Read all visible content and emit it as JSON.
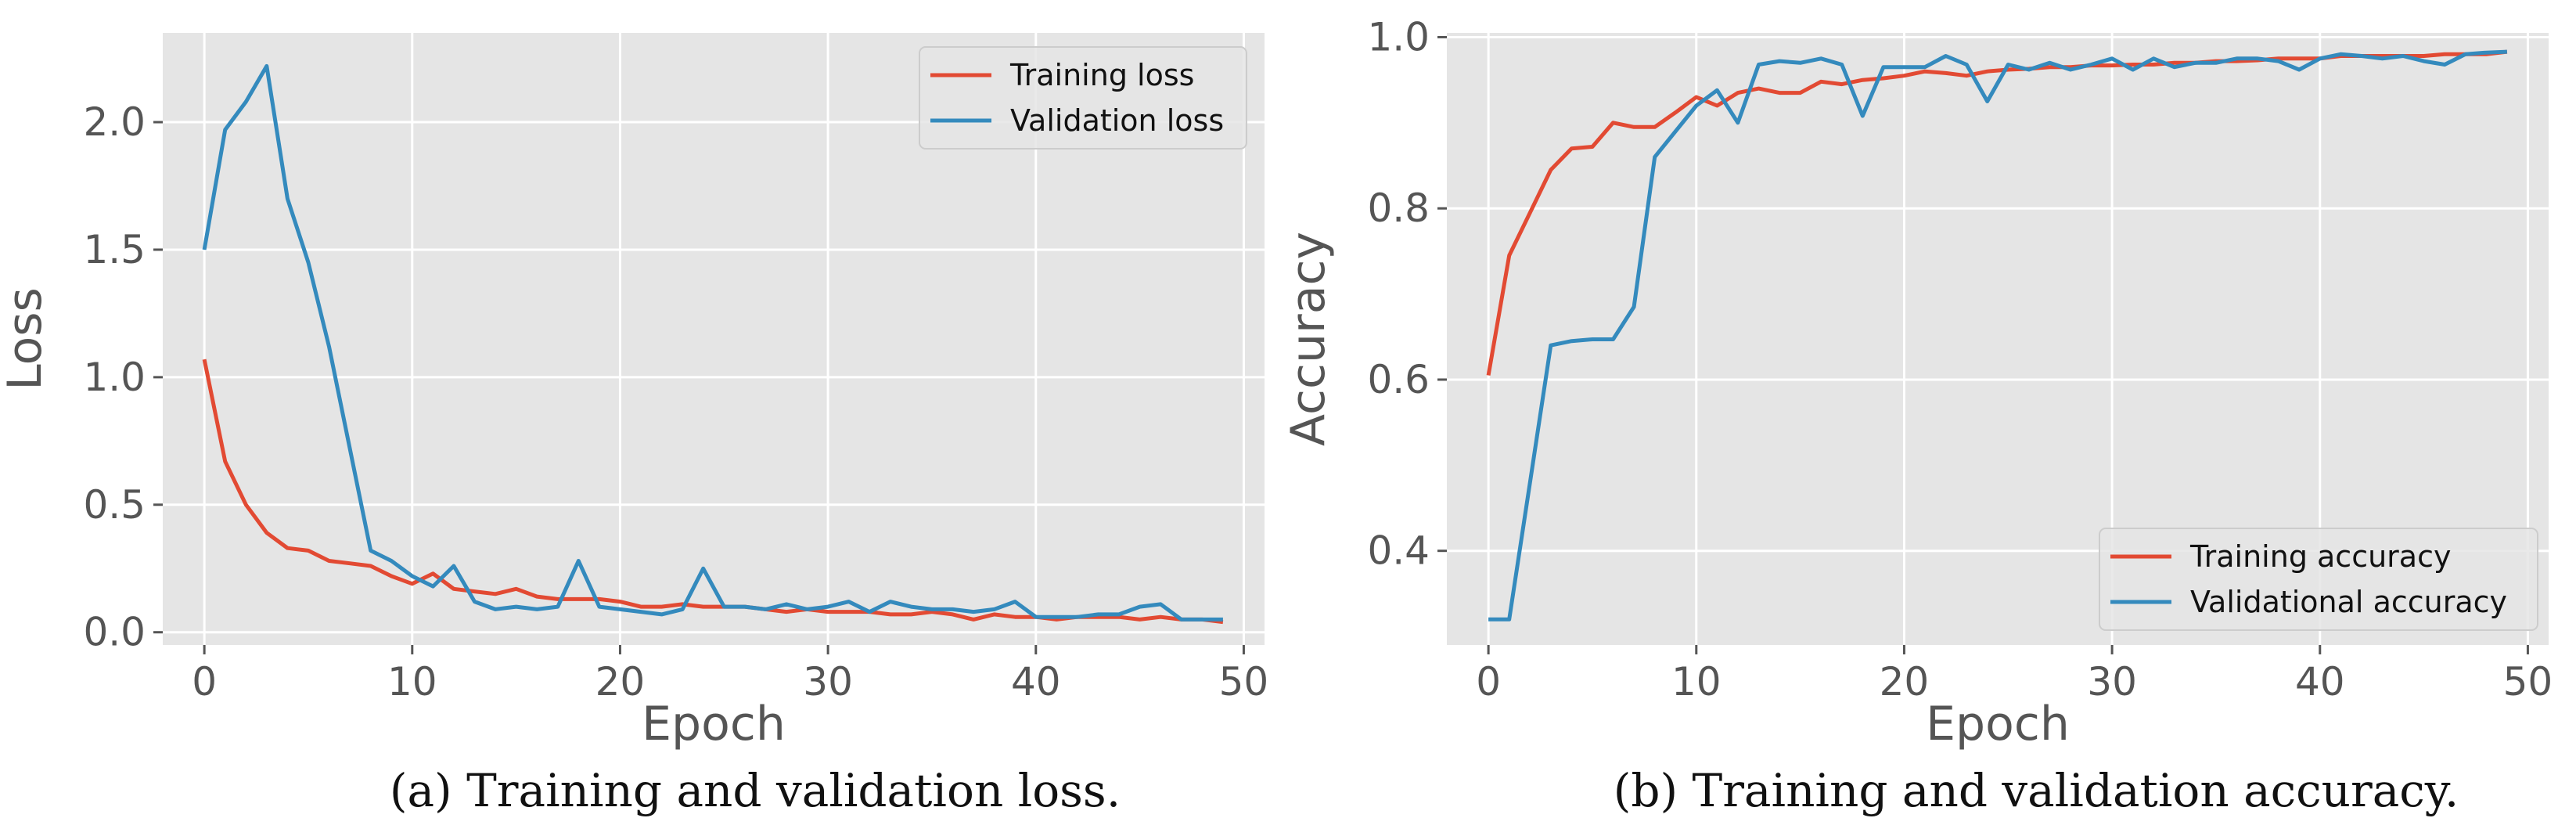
{
  "colors": {
    "panel_bg": "#E5E5E5",
    "grid": "#FFFFFF",
    "red": "#E24A33",
    "blue": "#348ABD",
    "tick_text": "#555555"
  },
  "chart_data": [
    {
      "type": "line",
      "title": "",
      "caption": "(a) Training and validation loss.",
      "xlabel": "Epoch",
      "ylabel": "Loss",
      "xlim": [
        -2,
        51
      ],
      "ylim": [
        -0.05,
        2.35
      ],
      "xticks": [
        0,
        10,
        20,
        30,
        40,
        50
      ],
      "xtick_labels": [
        "0",
        "10",
        "20",
        "30",
        "40",
        "50"
      ],
      "yticks": [
        0.0,
        0.5,
        1.0,
        1.5,
        2.0
      ],
      "ytick_labels": [
        "0.0",
        "0.5",
        "1.0",
        "1.5",
        "2.0"
      ],
      "grid": true,
      "legend_position": "top-right",
      "x": [
        0,
        1,
        2,
        3,
        4,
        5,
        6,
        7,
        8,
        9,
        10,
        11,
        12,
        13,
        14,
        15,
        16,
        17,
        18,
        19,
        20,
        21,
        22,
        23,
        24,
        25,
        26,
        27,
        28,
        29,
        30,
        31,
        32,
        33,
        34,
        35,
        36,
        37,
        38,
        39,
        40,
        41,
        42,
        43,
        44,
        45,
        46,
        47,
        48,
        49
      ],
      "series": [
        {
          "name": "Training loss",
          "color": "#E24A33",
          "values": [
            1.07,
            0.67,
            0.5,
            0.39,
            0.33,
            0.32,
            0.28,
            0.27,
            0.26,
            0.22,
            0.19,
            0.23,
            0.17,
            0.16,
            0.15,
            0.17,
            0.14,
            0.13,
            0.13,
            0.13,
            0.12,
            0.1,
            0.1,
            0.11,
            0.1,
            0.1,
            0.1,
            0.09,
            0.08,
            0.09,
            0.08,
            0.08,
            0.08,
            0.07,
            0.07,
            0.08,
            0.07,
            0.05,
            0.07,
            0.06,
            0.06,
            0.05,
            0.06,
            0.06,
            0.06,
            0.05,
            0.06,
            0.05,
            0.05,
            0.04
          ]
        },
        {
          "name": "Validation loss",
          "color": "#348ABD",
          "values": [
            1.5,
            1.97,
            2.08,
            2.22,
            1.7,
            1.45,
            1.12,
            0.72,
            0.32,
            0.28,
            0.22,
            0.18,
            0.26,
            0.12,
            0.09,
            0.1,
            0.09,
            0.1,
            0.28,
            0.1,
            0.09,
            0.08,
            0.07,
            0.09,
            0.25,
            0.1,
            0.1,
            0.09,
            0.11,
            0.09,
            0.1,
            0.12,
            0.08,
            0.12,
            0.1,
            0.09,
            0.09,
            0.08,
            0.09,
            0.12,
            0.06,
            0.06,
            0.06,
            0.07,
            0.07,
            0.1,
            0.11,
            0.05,
            0.05,
            0.05
          ]
        }
      ]
    },
    {
      "type": "line",
      "title": "",
      "caption": "(b) Training and validation accuracy.",
      "xlabel": "Epoch",
      "ylabel": "Accuracy",
      "xlim": [
        -2,
        51
      ],
      "ylim": [
        0.29,
        1.005
      ],
      "xticks": [
        0,
        10,
        20,
        30,
        40,
        50
      ],
      "xtick_labels": [
        "0",
        "10",
        "20",
        "30",
        "40",
        "50"
      ],
      "yticks": [
        0.4,
        0.6,
        0.8,
        1.0
      ],
      "ytick_labels": [
        "0.4",
        "0.6",
        "0.8",
        "1.0"
      ],
      "grid": true,
      "legend_position": "bottom-right",
      "x": [
        0,
        1,
        2,
        3,
        4,
        5,
        6,
        7,
        8,
        9,
        10,
        11,
        12,
        13,
        14,
        15,
        16,
        17,
        18,
        19,
        20,
        21,
        22,
        23,
        24,
        25,
        26,
        27,
        28,
        29,
        30,
        31,
        32,
        33,
        34,
        35,
        36,
        37,
        38,
        39,
        40,
        41,
        42,
        43,
        44,
        45,
        46,
        47,
        48,
        49
      ],
      "series": [
        {
          "name": "Training accuracy",
          "color": "#E24A33",
          "values": [
            0.605,
            0.745,
            0.795,
            0.845,
            0.87,
            0.872,
            0.9,
            0.895,
            0.895,
            0.912,
            0.93,
            0.92,
            0.935,
            0.94,
            0.935,
            0.935,
            0.948,
            0.945,
            0.95,
            0.952,
            0.955,
            0.96,
            0.958,
            0.955,
            0.96,
            0.962,
            0.963,
            0.965,
            0.965,
            0.967,
            0.967,
            0.968,
            0.968,
            0.97,
            0.97,
            0.972,
            0.972,
            0.973,
            0.975,
            0.975,
            0.975,
            0.978,
            0.978,
            0.978,
            0.978,
            0.978,
            0.98,
            0.98,
            0.98,
            0.983
          ]
        },
        {
          "name": "Validational accuracy",
          "color": "#348ABD",
          "values": [
            0.32,
            0.32,
            0.48,
            0.64,
            0.645,
            0.647,
            0.647,
            0.685,
            0.86,
            0.89,
            0.92,
            0.938,
            0.9,
            0.968,
            0.972,
            0.97,
            0.975,
            0.968,
            0.908,
            0.965,
            0.965,
            0.965,
            0.978,
            0.968,
            0.925,
            0.968,
            0.962,
            0.97,
            0.962,
            0.968,
            0.975,
            0.962,
            0.975,
            0.965,
            0.97,
            0.97,
            0.975,
            0.975,
            0.972,
            0.962,
            0.975,
            0.98,
            0.978,
            0.975,
            0.978,
            0.972,
            0.968,
            0.98,
            0.982,
            0.983
          ]
        }
      ]
    }
  ]
}
